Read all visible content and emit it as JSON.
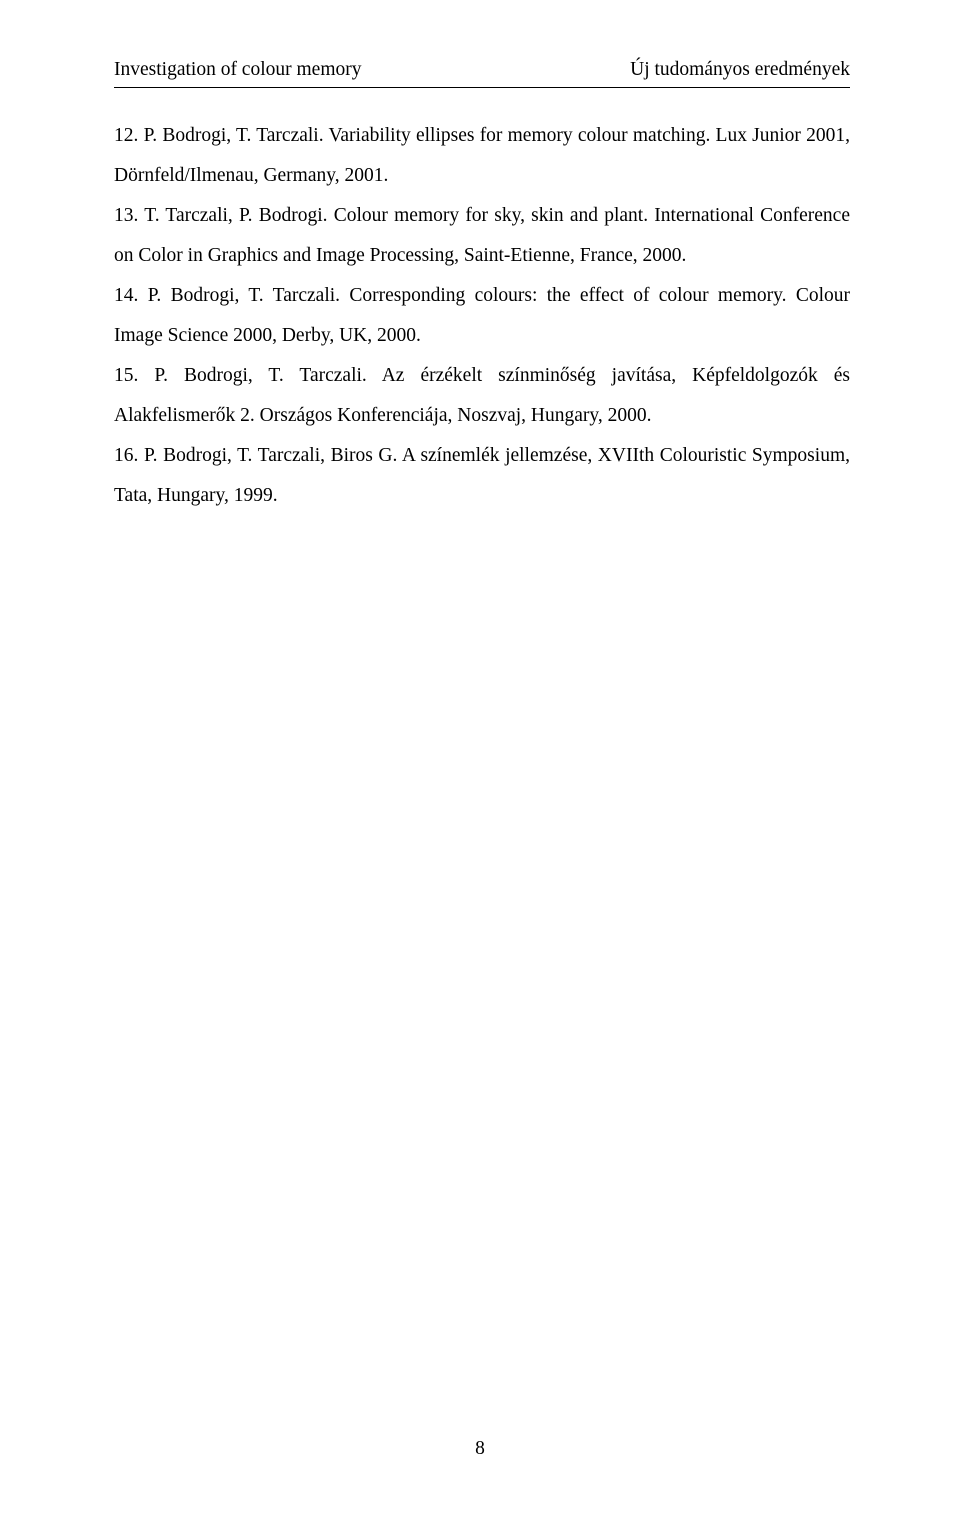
{
  "header": {
    "left": "Investigation of colour memory",
    "right": "Új tudományos eredmények"
  },
  "paragraphs": [
    "12. P. Bodrogi, T. Tarczali. Variability ellipses for memory colour matching. Lux Junior 2001, Dörnfeld/Ilmenau, Germany, 2001.",
    "13. T. Tarczali, P. Bodrogi. Colour memory for sky, skin and plant. International Conference on Color in Graphics and Image Processing, Saint-Etienne, France, 2000.",
    "14. P. Bodrogi, T. Tarczali. Corresponding colours: the effect of colour memory. Colour Image Science 2000, Derby, UK, 2000.",
    "15. P. Bodrogi, T. Tarczali. Az érzékelt színminőség javítása, Képfeldolgozók és Alakfelismerők 2. Országos Konferenciája, Noszvaj, Hungary, 2000.",
    "16. P. Bodrogi, T. Tarczali, Biros G. A színemlék jellemzése, XVIIth Colouristic Symposium, Tata, Hungary, 1999."
  ],
  "page_number": "8"
}
